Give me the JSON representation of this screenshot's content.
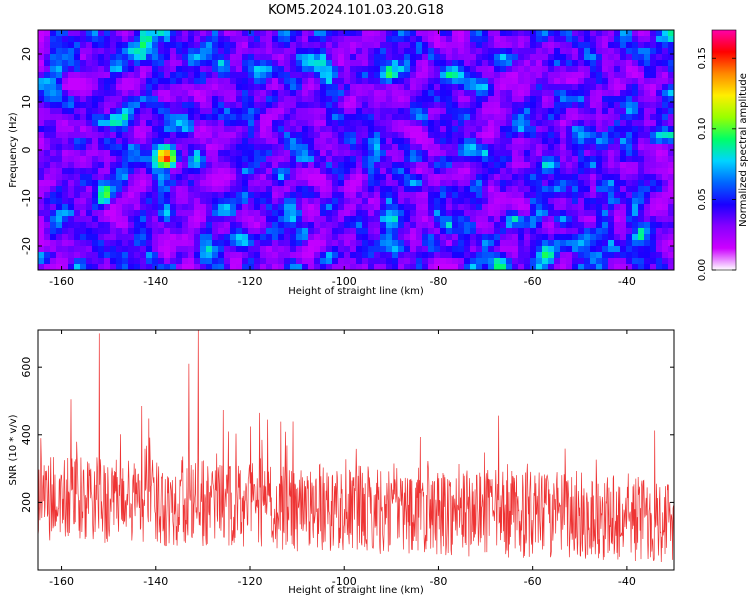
{
  "title": "KOM5.2024.101.03.20.G18",
  "chart_data": [
    {
      "type": "heatmap",
      "xlabel": "Height of straight line (km)",
      "ylabel": "Frequency (Hz)",
      "xlim": [
        -165,
        -30
      ],
      "ylim": [
        -25,
        25
      ],
      "x_ticks": [
        -160,
        -140,
        -120,
        -100,
        -80,
        -60,
        -40
      ],
      "y_ticks": [
        -20,
        -10,
        0,
        10,
        20
      ],
      "colorbar": {
        "label": "Normalized spectral amplitude",
        "range": [
          0,
          0.17
        ],
        "ticks": [
          "0.00",
          "0.05",
          "0.10",
          "0.15"
        ],
        "tick_values": [
          0,
          0.05,
          0.1,
          0.15
        ],
        "colormap": [
          "#ffffff",
          "#cc00ff",
          "#8800ff",
          "#1a00ff",
          "#0066ff",
          "#00d4ff",
          "#00ff66",
          "#99ff00",
          "#ffee00",
          "#ff8800",
          "#ff0000",
          "#ff00aa"
        ]
      },
      "peak": {
        "x": -138,
        "y": -1.5,
        "value": 0.17
      },
      "grid": false
    },
    {
      "type": "line",
      "xlabel": "Height of straight line (km)",
      "ylabel": "SNR (10 * v/v)",
      "xlim": [
        -165,
        -30
      ],
      "ylim": [
        0,
        710
      ],
      "x_ticks": [
        -160,
        -140,
        -120,
        -100,
        -80,
        -60,
        -40
      ],
      "y_ticks": [
        200,
        400,
        600
      ],
      "line_color": "#ee3333",
      "samples": 1350,
      "notable_peaks": [
        {
          "x": -152,
          "y": 700
        },
        {
          "x": -131,
          "y": 710
        },
        {
          "x": -133,
          "y": 610
        },
        {
          "x": -158,
          "y": 505
        },
        {
          "x": -143,
          "y": 485
        },
        {
          "x": -118,
          "y": 465
        }
      ],
      "grid": false
    }
  ]
}
